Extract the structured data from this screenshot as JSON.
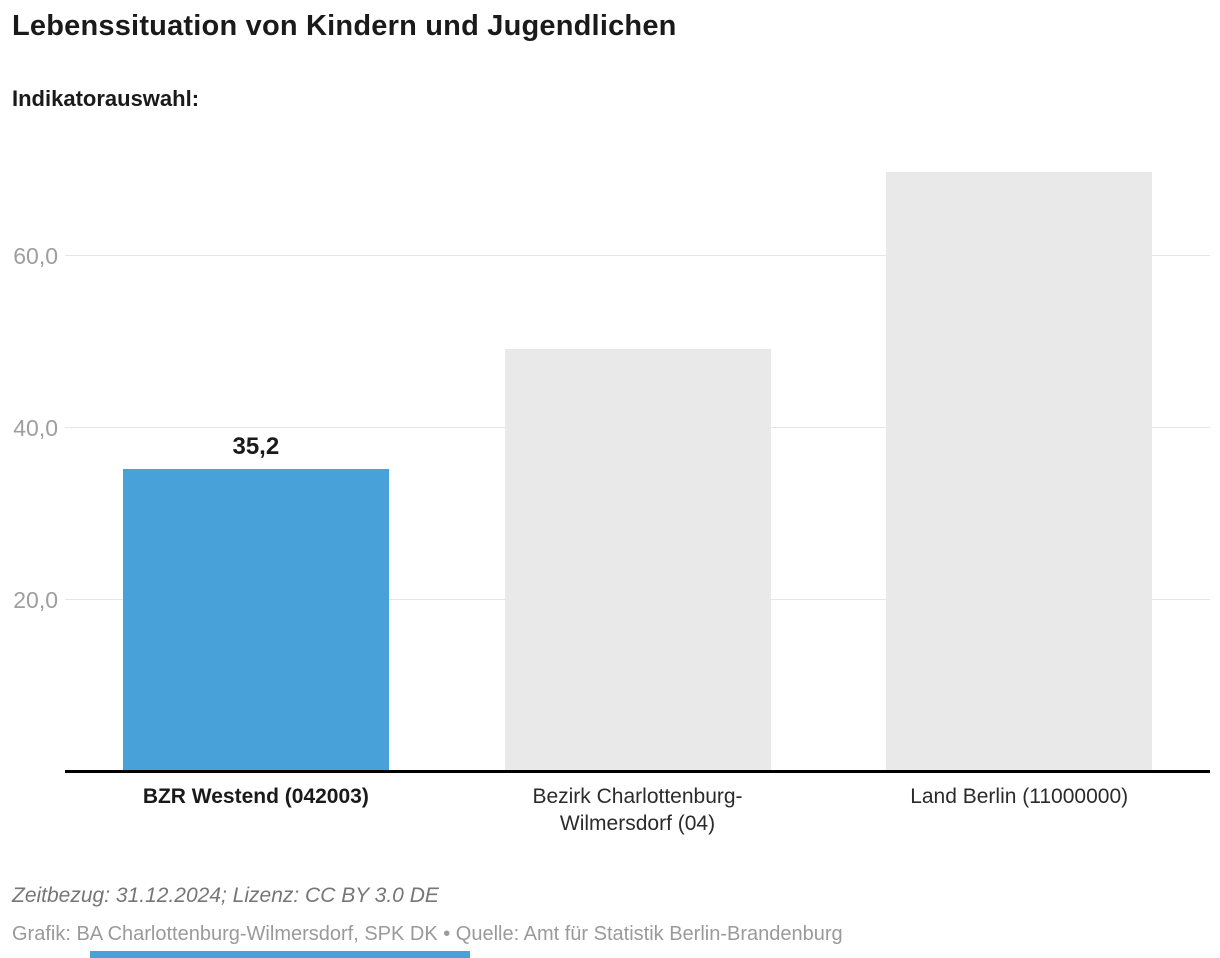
{
  "header": {
    "title": "Lebenssituation von Kindern und Jugendlichen",
    "indicator_label": "Indikatorauswahl:"
  },
  "chart_data": {
    "type": "bar",
    "title": "Lebenssituation von Kindern und Jugendlichen",
    "xlabel": "",
    "ylabel": "",
    "categories": [
      "BZR Westend (042003)",
      "Bezirk Charlottenburg-Wilmersdorf (04)",
      "Land Berlin (11000000)"
    ],
    "category_lines": [
      [
        "BZR Westend (042003)"
      ],
      [
        "Bezirk Charlottenburg-",
        "Wilmersdorf (04)"
      ],
      [
        "Land Berlin (11000000)"
      ]
    ],
    "category_bold": [
      true,
      false,
      false
    ],
    "values": [
      35.2,
      49.2,
      69.8
    ],
    "value_labels": [
      "35,2",
      "",
      ""
    ],
    "bar_colors": [
      "#48a2d9",
      "#e9e9e9",
      "#e9e9e9"
    ],
    "highlight_color": "#48a2d9",
    "comparison_color": "#e9e9e9",
    "yticks": [
      {
        "value": 20,
        "label": "20,0"
      },
      {
        "value": 40,
        "label": "40,0"
      },
      {
        "value": 60,
        "label": "60,0"
      }
    ],
    "ylim": [
      0,
      73
    ],
    "grid": true,
    "legend": "none"
  },
  "footer": {
    "zeitbezug": "Zeitbezug: 31.12.2024; Lizenz: CC BY 3.0 DE",
    "quelle": "Grafik: BA Charlottenburg-Wilmersdorf, SPK DK • Quelle: Amt für Statistik Berlin-Brandenburg"
  },
  "colors": {
    "accent_blue": "#48a2d9",
    "bar_gray": "#e9e9e9",
    "gridline": "#e6e6e6",
    "axis": "#000000",
    "tick_text": "#9e9e9e"
  }
}
